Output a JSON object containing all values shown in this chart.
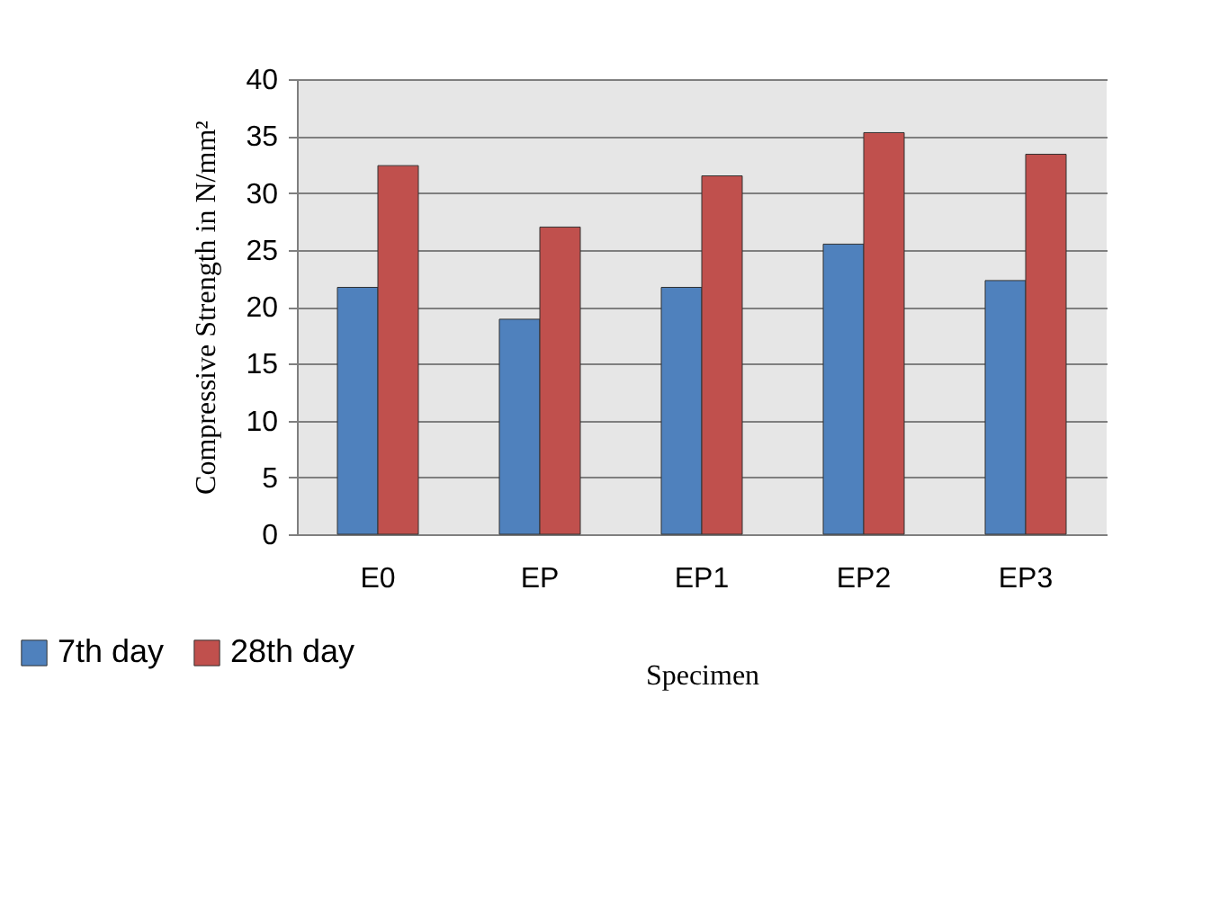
{
  "chart_data": {
    "type": "bar",
    "xlabel": "Specimen",
    "ylabel": "Compressive Strength in N/mm²",
    "categories": [
      "E0",
      "EP",
      "EP1",
      "EP2",
      "EP3"
    ],
    "series": [
      {
        "name": "7th day",
        "color": "#4f81bd",
        "values": [
          21.7,
          18.9,
          21.7,
          25.5,
          22.3
        ]
      },
      {
        "name": "28th day",
        "color": "#c0504d",
        "values": [
          32.4,
          27.0,
          31.5,
          35.3,
          33.4
        ]
      }
    ],
    "ylim": [
      0,
      40
    ],
    "yticks": [
      0,
      5,
      10,
      15,
      20,
      25,
      30,
      35,
      40
    ],
    "grid": "y",
    "legend": "bottom left"
  }
}
